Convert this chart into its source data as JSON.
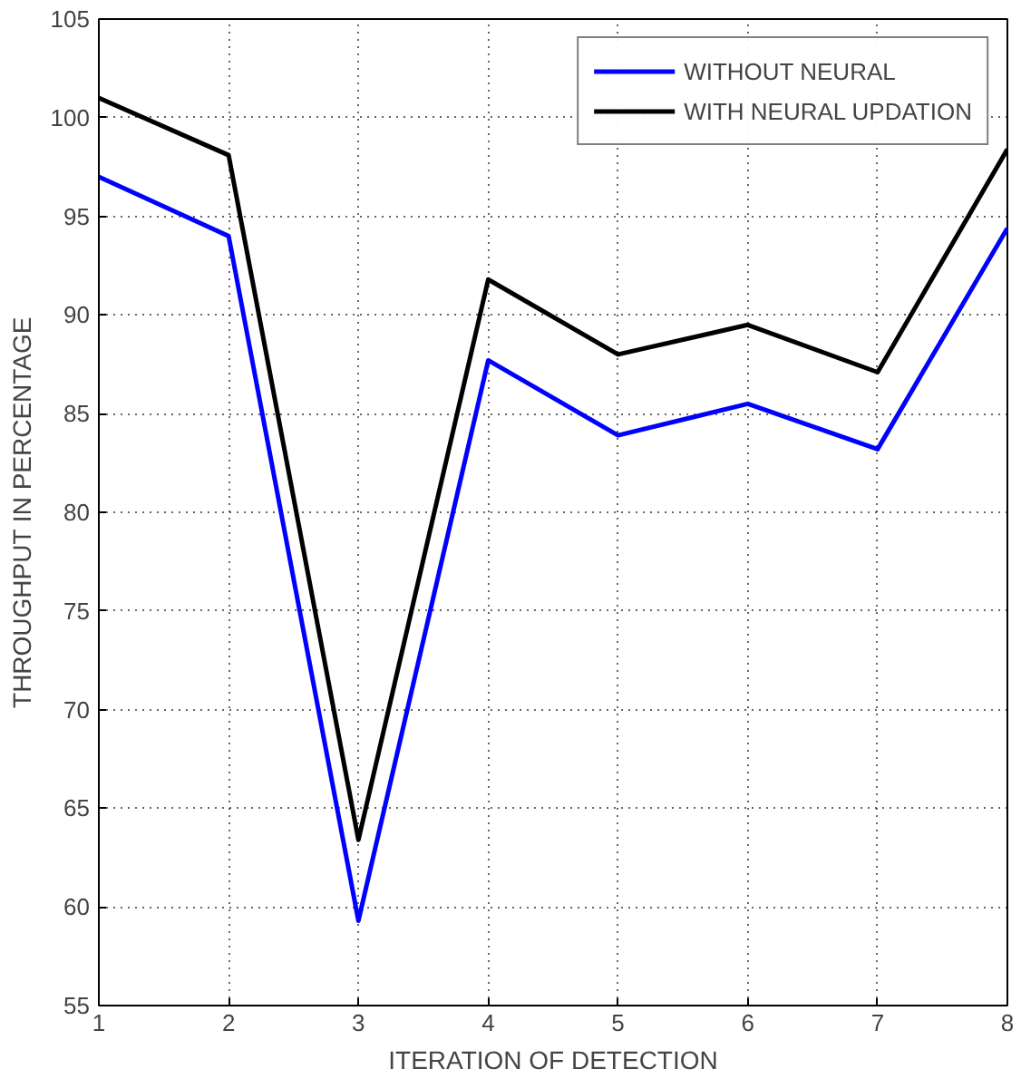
{
  "chart_data": {
    "type": "line",
    "xlabel": "ITERATION OF DETECTION",
    "ylabel": "THROUGHPUT IN PERCENTAGE",
    "x": [
      1,
      2,
      3,
      4,
      5,
      6,
      7,
      8
    ],
    "series": [
      {
        "name": "WITHOUT NEURAL",
        "color": "#0000ff",
        "values": [
          97,
          94,
          59.3,
          87.7,
          83.9,
          85.5,
          83.2,
          94.4
        ]
      },
      {
        "name": "WITH NEURAL UPDATION",
        "color": "#000000",
        "values": [
          101,
          98.1,
          63.4,
          91.8,
          88,
          89.5,
          87.1,
          98.4
        ]
      }
    ],
    "xlim": [
      1,
      8
    ],
    "xticks": [
      1,
      2,
      3,
      4,
      5,
      6,
      7,
      8
    ],
    "ylim": [
      55,
      105
    ],
    "yticks": [
      55,
      60,
      65,
      70,
      75,
      80,
      85,
      90,
      95,
      100,
      105
    ],
    "grid": true,
    "legend": "top right",
    "line_style": "solid",
    "marker": "none"
  }
}
